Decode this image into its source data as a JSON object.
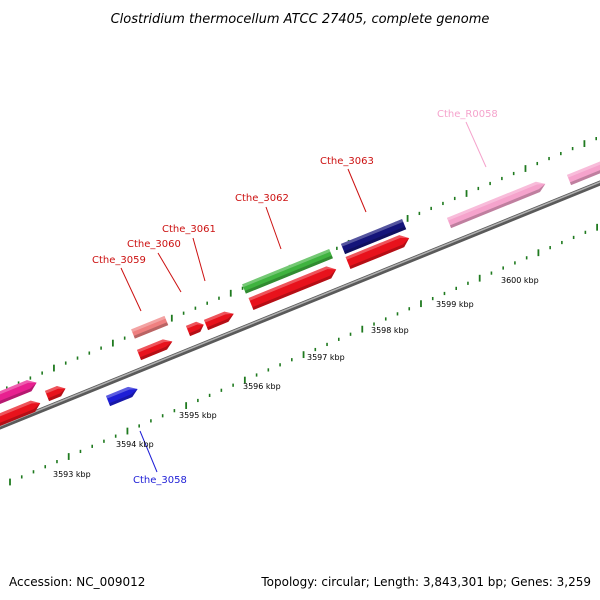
{
  "title": "Clostridium thermocellum ATCC 27405, complete genome",
  "footer": {
    "accession": "Accession: NC_009012",
    "summary": "Topology: circular; Length: 3,843,301 bp; Genes: 3,259"
  },
  "colors": {
    "backbone": "#8c8c8c",
    "tick": "#1f7a1f",
    "red_gene": "#e8121c",
    "salmon_gene": "#ef8080",
    "green_gene": "#3fb33f",
    "navy_gene": "#14147a",
    "blue_gene": "#1e1ed6",
    "pink_gene": "#f5a3cc",
    "magenta_gene": "#e82090"
  },
  "scale_labels": [
    {
      "id": "kbp-3593",
      "text": "3593 kbp"
    },
    {
      "id": "kbp-3594",
      "text": "3594 kbp"
    },
    {
      "id": "kbp-3595",
      "text": "3595 kbp"
    },
    {
      "id": "kbp-3596",
      "text": "3596 kbp"
    },
    {
      "id": "kbp-3597",
      "text": "3597 kbp"
    },
    {
      "id": "kbp-3598",
      "text": "3598 kbp"
    },
    {
      "id": "kbp-3599",
      "text": "3599 kbp"
    },
    {
      "id": "kbp-3600",
      "text": "3600 kbp"
    }
  ],
  "gene_labels": [
    {
      "id": "cthe-3058",
      "text": "Cthe_3058",
      "color": "#1e1ed6"
    },
    {
      "id": "cthe-3059",
      "text": "Cthe_3059",
      "color": "#cc1111"
    },
    {
      "id": "cthe-3060",
      "text": "Cthe_3060",
      "color": "#cc1111"
    },
    {
      "id": "cthe-3061",
      "text": "Cthe_3061",
      "color": "#cc1111"
    },
    {
      "id": "cthe-3062",
      "text": "Cthe_3062",
      "color": "#cc1111"
    },
    {
      "id": "cthe-3063",
      "text": "Cthe_3063",
      "color": "#cc1111"
    },
    {
      "id": "cthe-r0058",
      "text": "Cthe_R0058",
      "color": "#f5a3cc"
    }
  ]
}
